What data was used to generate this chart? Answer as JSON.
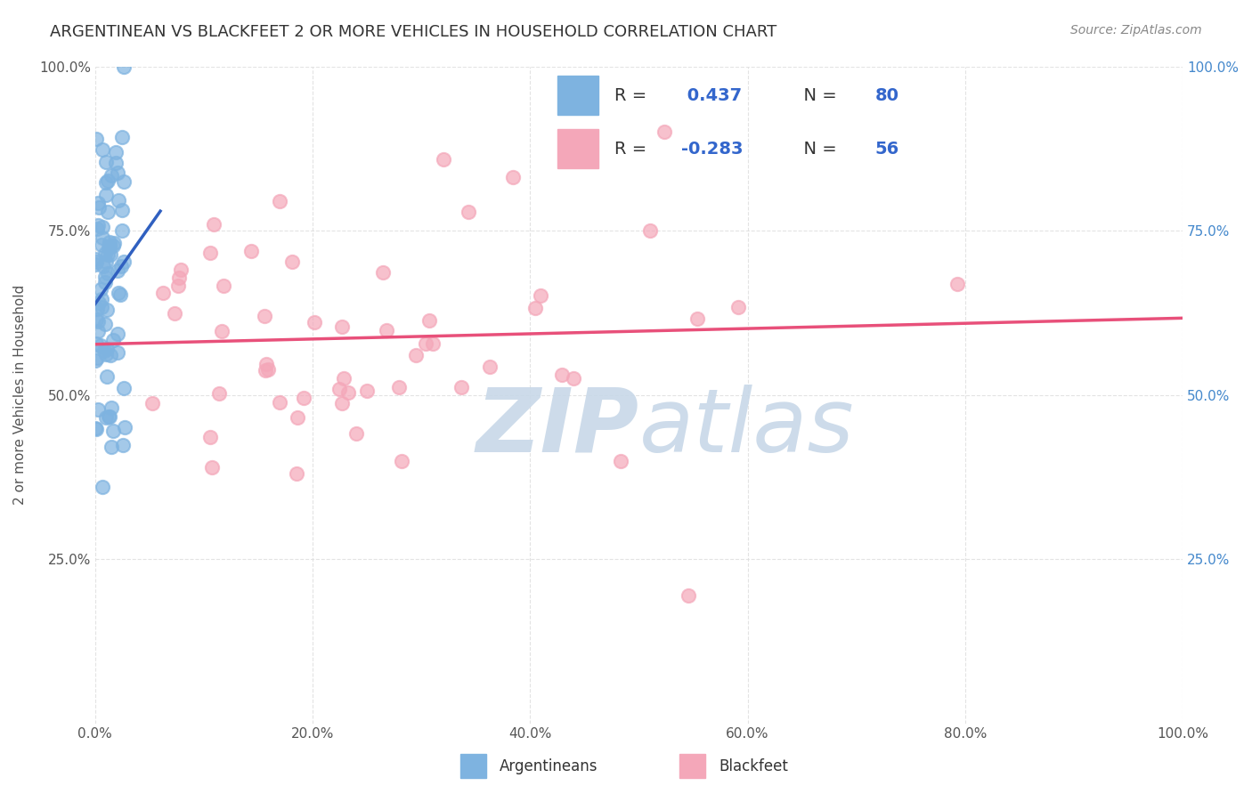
{
  "title": "ARGENTINEAN VS BLACKFEET 2 OR MORE VEHICLES IN HOUSEHOLD CORRELATION CHART",
  "source_text": "Source: ZipAtlas.com",
  "ylabel": "2 or more Vehicles in Household",
  "xlim": [
    0,
    100
  ],
  "ylim": [
    0,
    100
  ],
  "r1": 0.437,
  "n1": 80,
  "r2": -0.283,
  "n2": 56,
  "blue_color": "#7EB3E0",
  "pink_color": "#F4A7B9",
  "blue_line_color": "#3060C0",
  "pink_line_color": "#E8507A",
  "watermark_zip_color": "#C8D8E8",
  "watermark_atlas_color": "#C8D8E8",
  "background_color": "#FFFFFF",
  "grid_color": "#DDDDDD",
  "title_color": "#333333",
  "axis_label_color": "#555555",
  "right_tick_color": "#4488CC",
  "legend_r_color": "#333333",
  "legend_val_color": "#3366CC",
  "bottom_legend_color": "#333333",
  "source_color": "#888888"
}
